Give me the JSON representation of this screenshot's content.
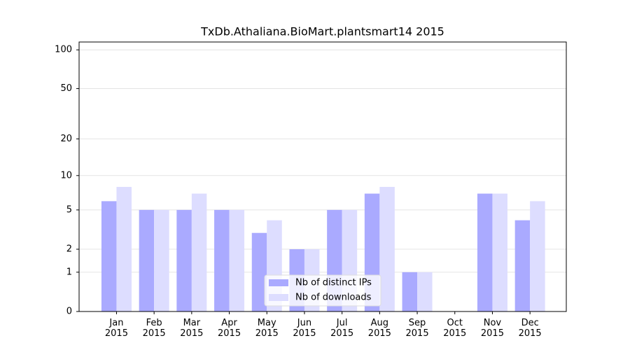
{
  "chart_data": {
    "type": "bar",
    "title": "TxDb.Athaliana.BioMart.plantsmart14 2015",
    "categories": [
      "Jan 2015",
      "Feb 2015",
      "Mar 2015",
      "Apr 2015",
      "May 2015",
      "Jun 2015",
      "Jul 2015",
      "Aug 2015",
      "Sep 2015",
      "Oct 2015",
      "Nov 2015",
      "Dec 2015"
    ],
    "series": [
      {
        "name": "Nb of distinct IPs",
        "color": "#aaaaff",
        "values": [
          6,
          5,
          5,
          5,
          3,
          2,
          5,
          7,
          1,
          0,
          7,
          4
        ]
      },
      {
        "name": "Nb of downloads",
        "color": "#ddddff",
        "values": [
          8,
          5,
          7,
          5,
          4,
          2,
          5,
          8,
          1,
          0,
          7,
          6
        ]
      }
    ],
    "yscale": "log1p",
    "ylim": [
      0,
      115
    ],
    "yticks": [
      0,
      1,
      2,
      5,
      10,
      20,
      50,
      100
    ],
    "grid": true,
    "legend": "lower center"
  }
}
